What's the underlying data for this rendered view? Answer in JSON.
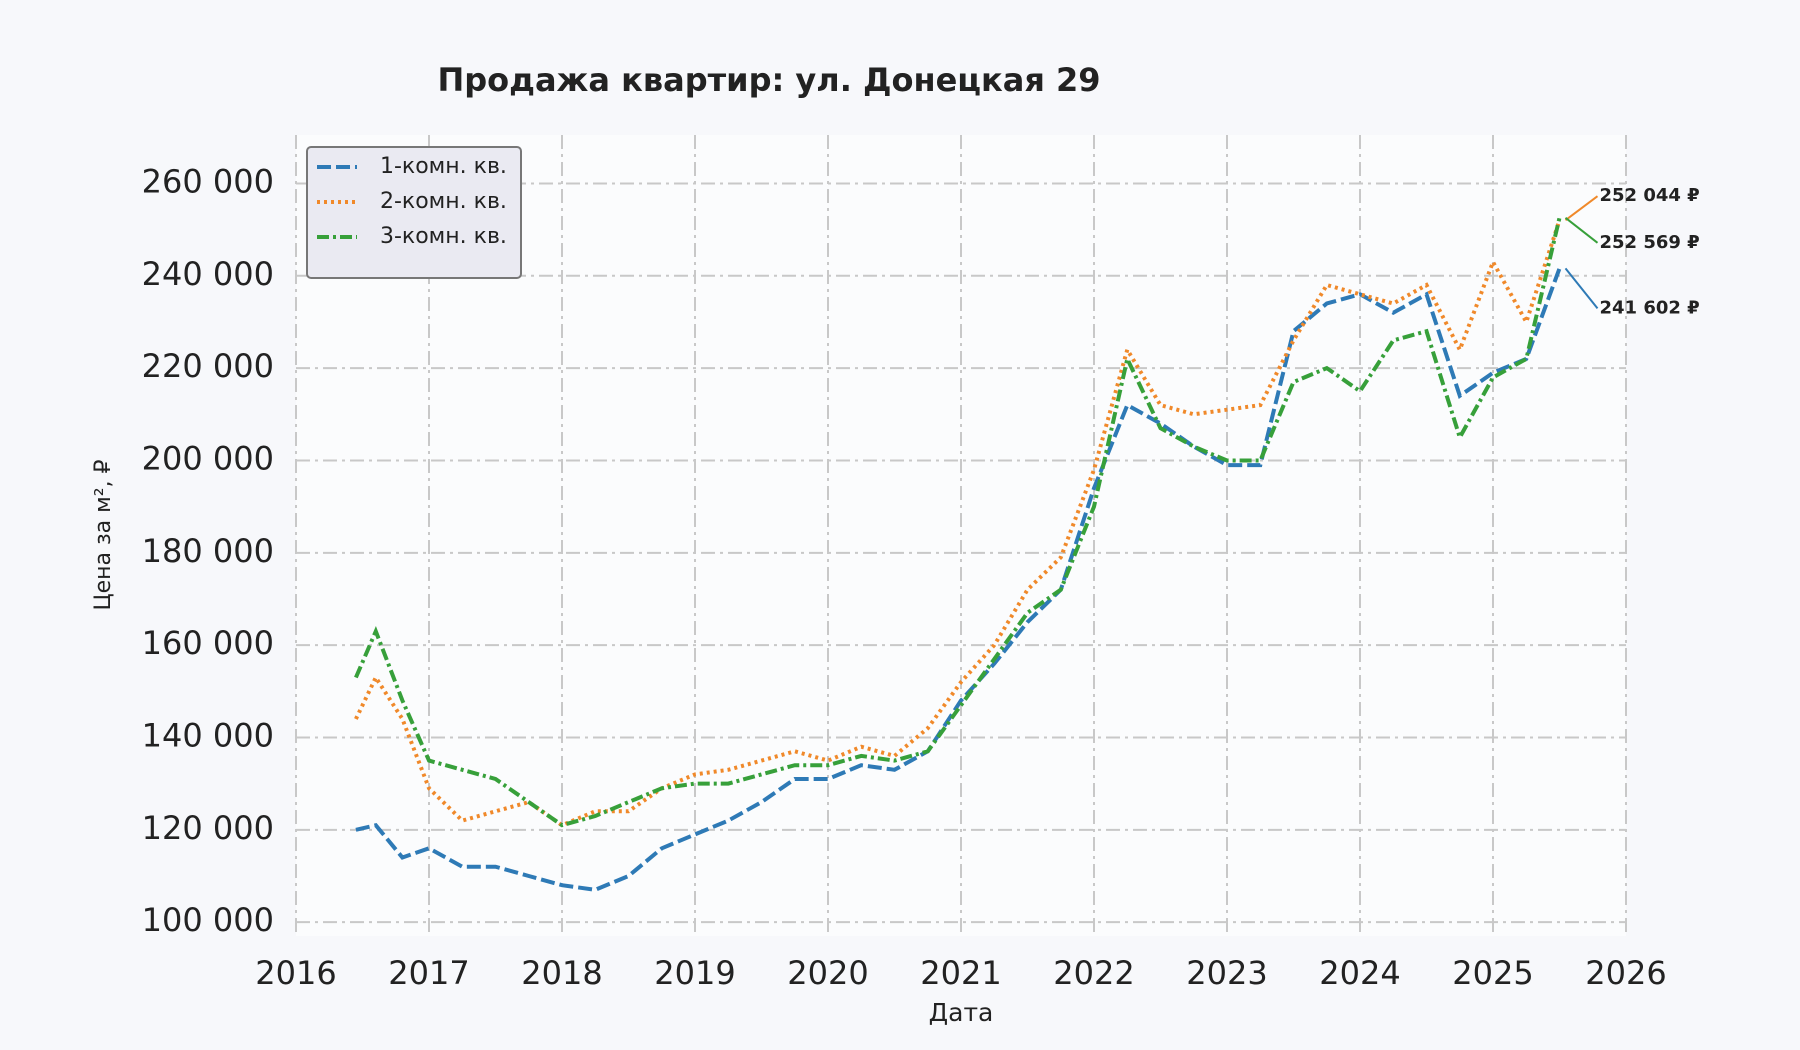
{
  "chart_data": {
    "type": "line",
    "title": "Продажа квартир: ул. Донецкая 29",
    "xlabel": "Дата",
    "ylabel": "Цена за м², ₽",
    "x": [
      2016.45,
      2016.6,
      2016.8,
      2017.0,
      2017.25,
      2017.5,
      2017.75,
      2018.0,
      2018.25,
      2018.5,
      2018.75,
      2019.0,
      2019.25,
      2019.5,
      2019.75,
      2020.0,
      2020.25,
      2020.5,
      2020.75,
      2021.0,
      2021.25,
      2021.5,
      2021.75,
      2022.0,
      2022.25,
      2022.5,
      2022.75,
      2023.0,
      2023.25,
      2023.5,
      2023.75,
      2024.0,
      2024.25,
      2024.5,
      2024.75,
      2025.0,
      2025.25,
      2025.5
    ],
    "series": [
      {
        "name": "1-комн. кв.",
        "color": "#2e7ab6",
        "linestyle": "dashed",
        "values": [
          120000,
          121000,
          114000,
          116000,
          112000,
          112000,
          110000,
          108000,
          107000,
          110000,
          116000,
          119000,
          122000,
          126000,
          131000,
          131000,
          134000,
          133000,
          137000,
          148000,
          156000,
          165000,
          172000,
          194000,
          212000,
          208000,
          203000,
          199000,
          199000,
          228000,
          234000,
          236000,
          232000,
          236000,
          214000,
          219000,
          222000,
          241602
        ],
        "value_labels": [
          null,
          null,
          null,
          null,
          null,
          null,
          null,
          null,
          null,
          null,
          null,
          null,
          null,
          null,
          null,
          null,
          null,
          null,
          null,
          null,
          null,
          null,
          null,
          null,
          null,
          null,
          null,
          null,
          null,
          null,
          null,
          null,
          null,
          null,
          null,
          null,
          null,
          "241 602 ₽"
        ]
      },
      {
        "name": "2-комн. кв.",
        "color": "#f0892a",
        "linestyle": "dotted",
        "values": [
          144000,
          153000,
          144000,
          129000,
          122000,
          124000,
          126000,
          121000,
          124000,
          124000,
          129000,
          132000,
          133000,
          135000,
          137000,
          135000,
          138000,
          136000,
          142000,
          152000,
          160000,
          172000,
          179000,
          198000,
          224000,
          212000,
          210000,
          211000,
          212000,
          226000,
          238000,
          236000,
          234000,
          238000,
          224000,
          243000,
          230000,
          252044
        ],
        "value_labels": [
          null,
          null,
          null,
          null,
          null,
          null,
          null,
          null,
          null,
          null,
          null,
          null,
          null,
          null,
          null,
          null,
          null,
          null,
          null,
          null,
          null,
          null,
          null,
          null,
          null,
          null,
          null,
          null,
          null,
          null,
          null,
          null,
          null,
          null,
          null,
          null,
          null,
          "252 044 ₽"
        ]
      },
      {
        "name": "3-комн. кв.",
        "color": "#37a03a",
        "linestyle": "dashdot",
        "values": [
          153000,
          163000,
          148000,
          135000,
          133000,
          131000,
          126000,
          121000,
          123000,
          126000,
          129000,
          130000,
          130000,
          132000,
          134000,
          134000,
          136000,
          135000,
          137000,
          147000,
          157000,
          167000,
          172000,
          190000,
          222000,
          207000,
          203000,
          200000,
          200000,
          217000,
          220000,
          215000,
          226000,
          228000,
          205000,
          218000,
          222000,
          252569
        ],
        "value_labels": [
          null,
          null,
          null,
          null,
          null,
          null,
          null,
          null,
          null,
          null,
          null,
          null,
          null,
          null,
          null,
          null,
          null,
          null,
          null,
          null,
          null,
          null,
          null,
          null,
          null,
          null,
          null,
          null,
          null,
          null,
          null,
          null,
          null,
          null,
          null,
          null,
          null,
          "252 569 ₽"
        ]
      }
    ],
    "xlim": [
      2016,
      2026
    ],
    "xticks": [
      2016,
      2017,
      2018,
      2019,
      2020,
      2021,
      2022,
      2023,
      2024,
      2025,
      2026
    ],
    "ylim": [
      97000,
      270500
    ],
    "yticks": [
      {
        "value": 100000,
        "label": "100 000"
      },
      {
        "value": 120000,
        "label": "120 000"
      },
      {
        "value": 140000,
        "label": "140 000"
      },
      {
        "value": 160000,
        "label": "160 000"
      },
      {
        "value": 180000,
        "label": "180 000"
      },
      {
        "value": 200000,
        "label": "200 000"
      },
      {
        "value": 220000,
        "label": "220 000"
      },
      {
        "value": 240000,
        "label": "240 000"
      },
      {
        "value": 260000,
        "label": "260 000"
      }
    ],
    "grid": true,
    "legend": "upper left"
  }
}
